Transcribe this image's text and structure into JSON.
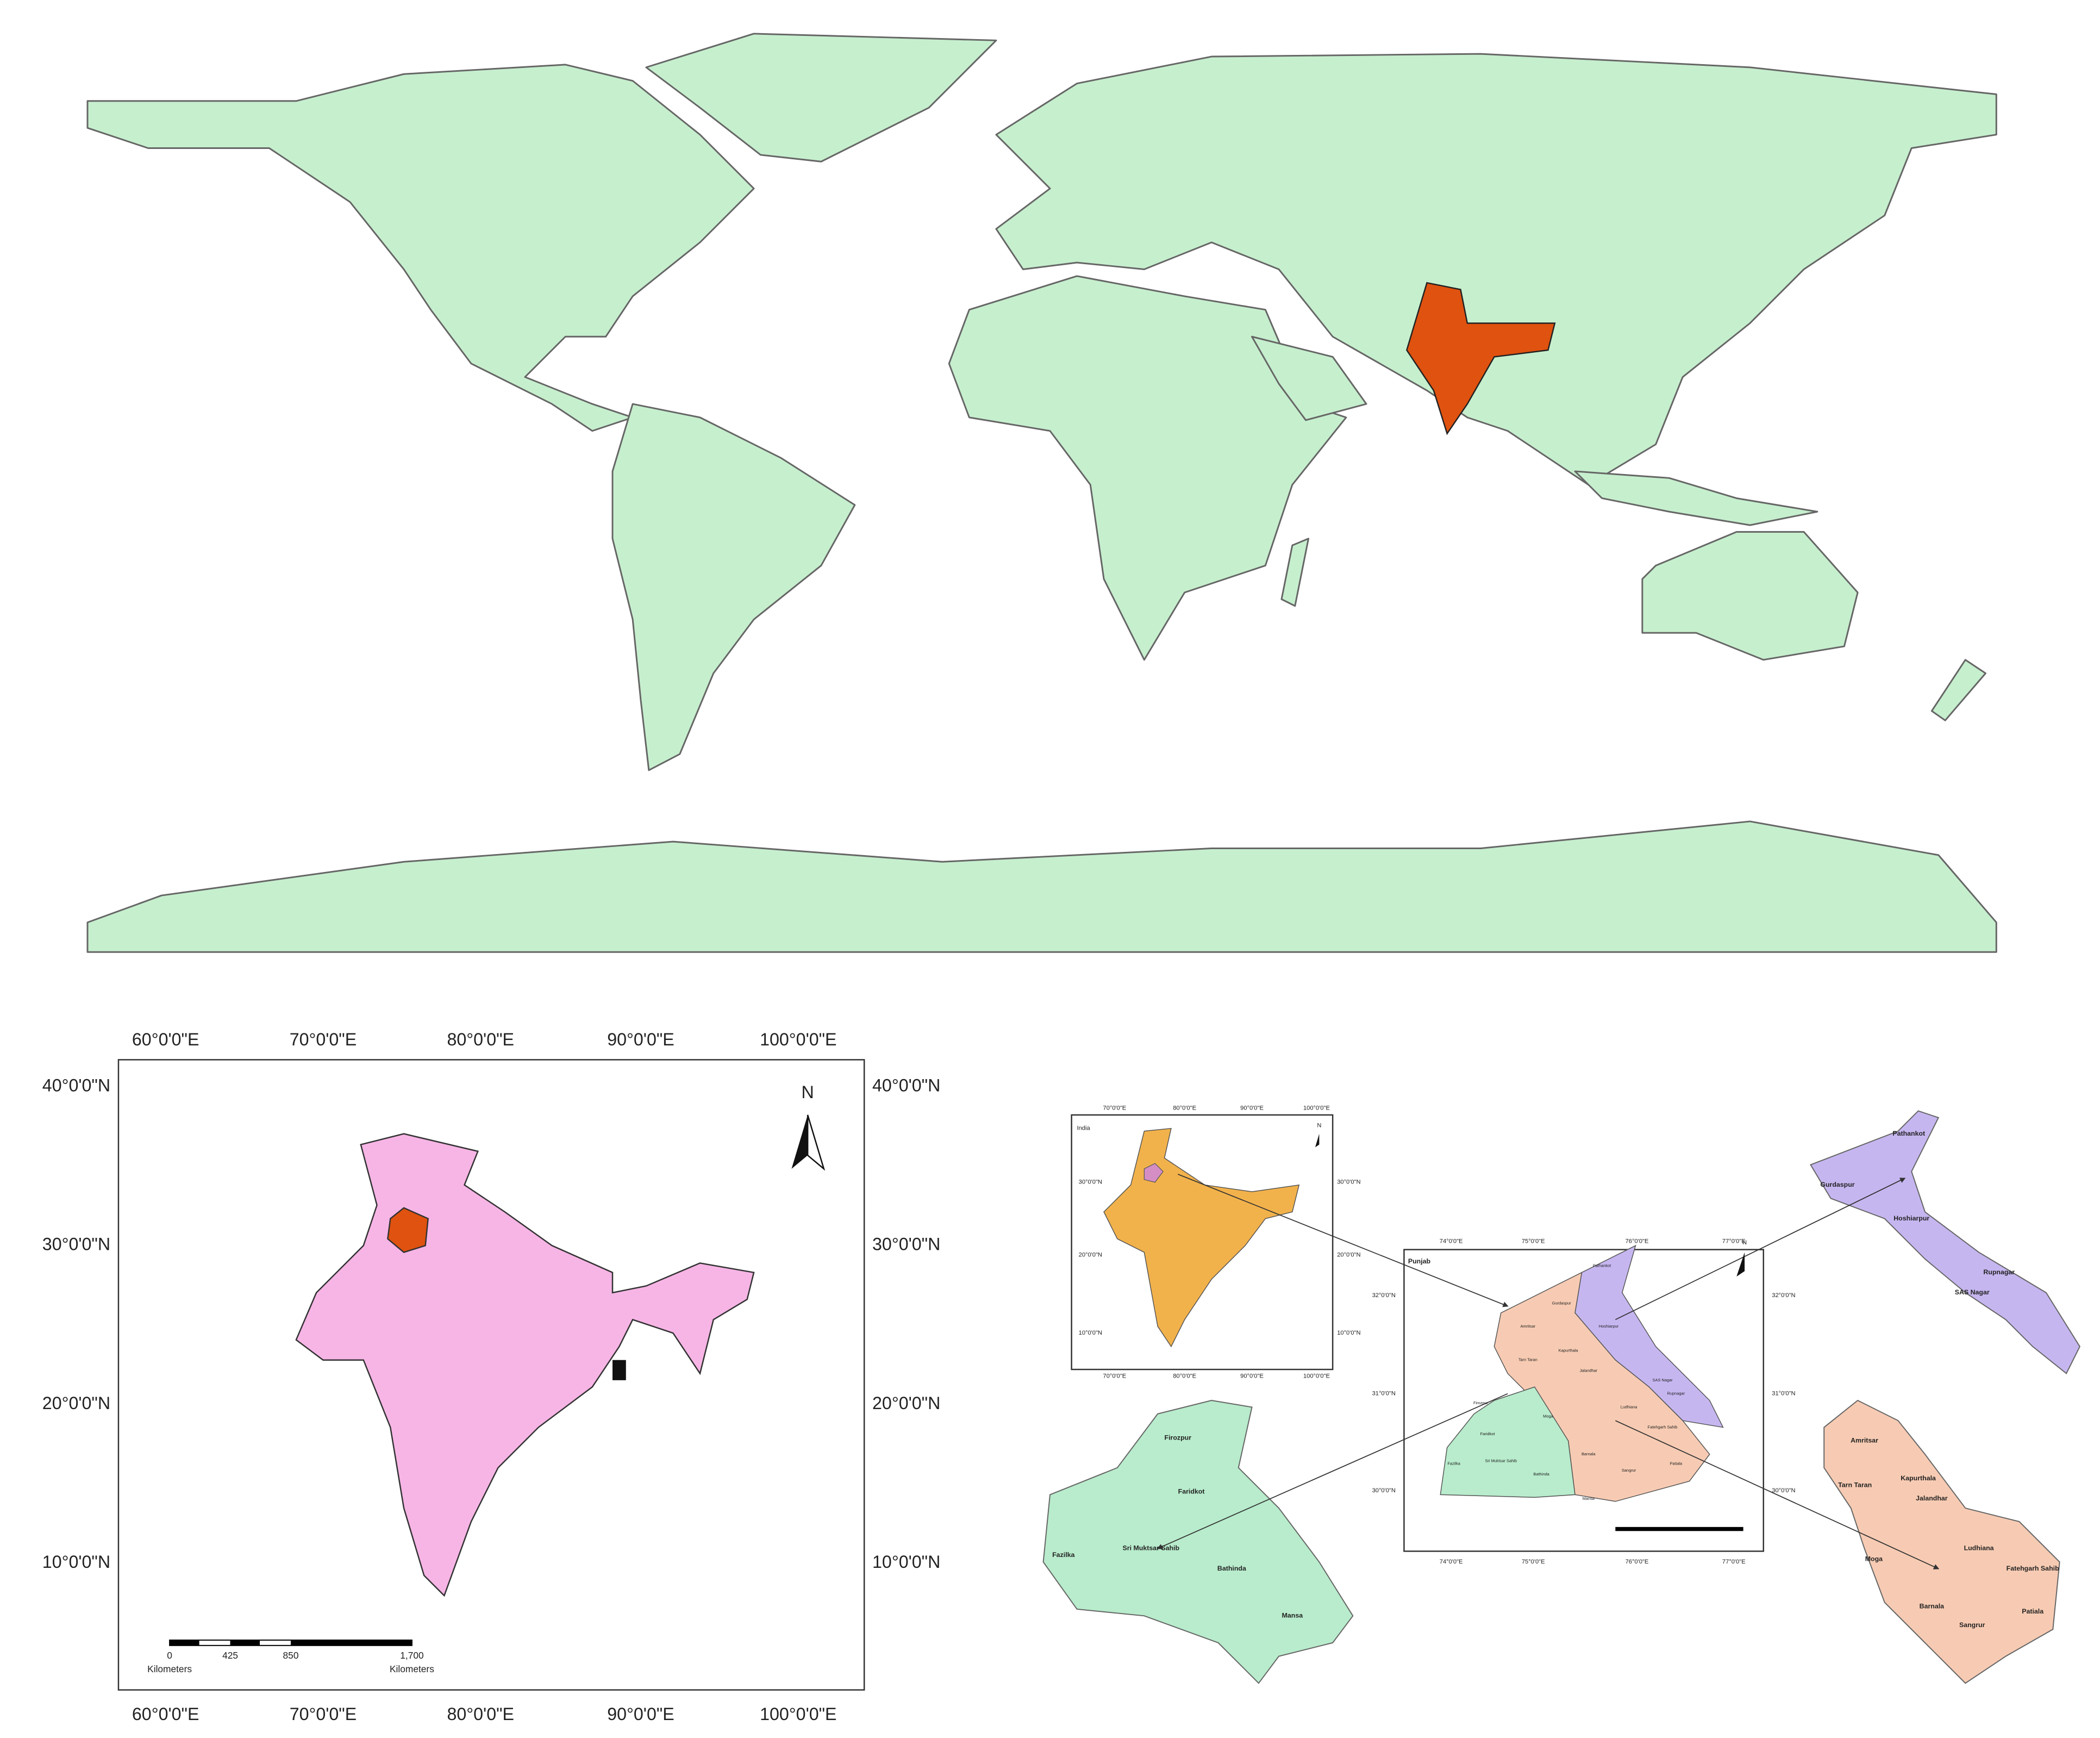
{
  "india_map": {
    "longitude_labels": [
      "60°0'0\"E",
      "70°0'0\"E",
      "80°0'0\"E",
      "90°0'0\"E",
      "100°0'0\"E"
    ],
    "latitude_labels": [
      "40°0'0\"N",
      "30°0'0\"N",
      "20°0'0\"N",
      "10°0'0\"N"
    ],
    "north_label": "N",
    "scale_labels": [
      "0",
      "425",
      "850",
      "1,700"
    ],
    "scale_unit": "Kilometers"
  },
  "punjab_map": {
    "inset": {
      "title": "India",
      "north_label": "N",
      "longitude_labels": [
        "70°0'0\"E",
        "80°0'0\"E",
        "90°0'0\"E",
        "100°0'0\"E"
      ],
      "latitude_labels": [
        "30°0'0\"N",
        "20°0'0\"N",
        "10°0'0\"N"
      ]
    },
    "title": "Punjab",
    "north_label": "N",
    "longitude_labels": [
      "74°0'0\"E",
      "75°0'0\"E",
      "76°0'0\"E",
      "77°0'0\"E"
    ],
    "latitude_labels": [
      "32°0'0\"N",
      "31°0'0\"N",
      "30°0'0\"N"
    ],
    "northeast_districts": [
      "Pathankot",
      "Gurdaspur",
      "Hoshiarpur",
      "Rupnagar",
      "SAS Nagar"
    ],
    "southwest_districts": [
      "Firozpur",
      "Faridkot",
      "Fazilka",
      "Sri Muktsar Sahib",
      "Bathinda",
      "Mansa"
    ],
    "central_districts": [
      "Amritsar",
      "Tarn Taran",
      "Kapurthala",
      "Jalandhar",
      "Ludhiana",
      "Moga",
      "Fatehgarh Sahib",
      "Barnala",
      "Sangrur",
      "Patiala"
    ]
  }
}
